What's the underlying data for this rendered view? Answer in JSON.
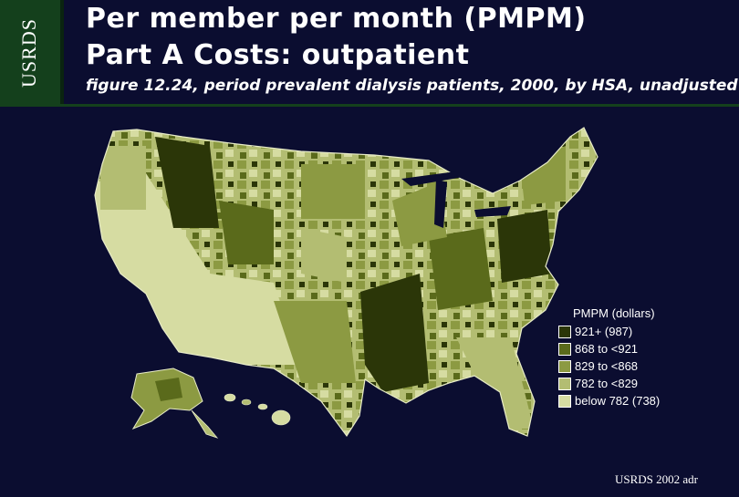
{
  "side_tab": {
    "label": "USRDS"
  },
  "title": {
    "line1": "Per member per month (PMPM)",
    "line2": "Part A Costs: outpatient"
  },
  "subtitle": "figure 12.24, period prevalent dialysis patients, 2000, by HSA, unadjusted",
  "legend": {
    "title": "PMPM (dollars)",
    "items": [
      {
        "label": "921+ (987)",
        "color": "#2b3608"
      },
      {
        "label": "868 to <921",
        "color": "#5a6a1b"
      },
      {
        "label": "829 to <868",
        "color": "#8c9a42"
      },
      {
        "label": "782 to <829",
        "color": "#b3bd72"
      },
      {
        "label": "below 782 (738)",
        "color": "#d6dca2"
      }
    ]
  },
  "credit": "USRDS 2002 adr"
}
